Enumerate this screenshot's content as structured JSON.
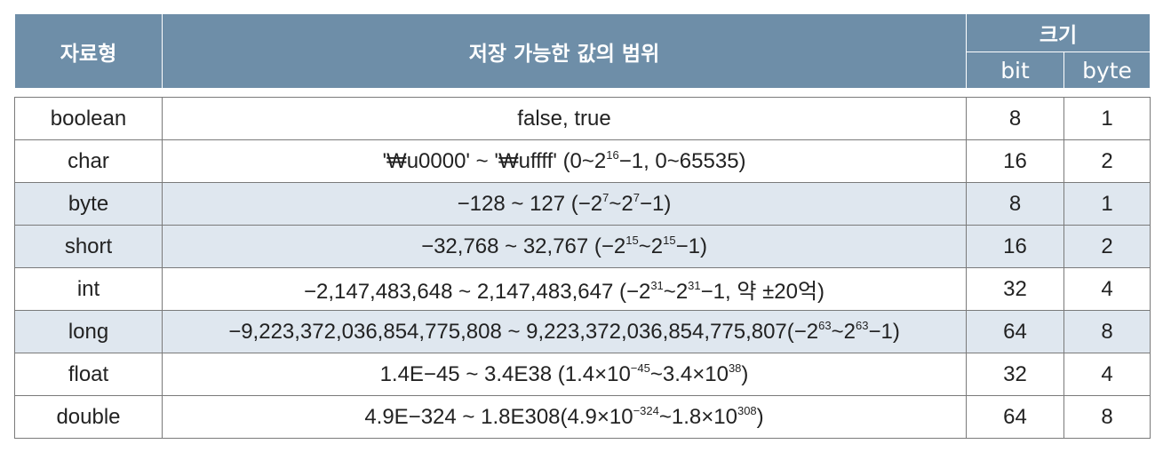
{
  "header": {
    "type": "자료형",
    "range": "저장 가능한 값의 범위",
    "size": "크기",
    "bit": "bit",
    "byte": "byte"
  },
  "rows": [
    {
      "type": "boolean",
      "range": [
        [
          "false, true",
          ""
        ]
      ],
      "bit": "8",
      "byte": "1",
      "shade": false
    },
    {
      "type": "char",
      "range": [
        [
          "'₩u0000' ~ '₩uffff' (0~2",
          ""
        ],
        [
          "",
          "16"
        ],
        [
          "−1, 0~65535)",
          ""
        ]
      ],
      "bit": "16",
      "byte": "2",
      "shade": false
    },
    {
      "type": "byte",
      "range": [
        [
          "−128 ~ 127 (−2",
          ""
        ],
        [
          "",
          "7"
        ],
        [
          "~2",
          ""
        ],
        [
          "",
          "7"
        ],
        [
          "−1)",
          ""
        ]
      ],
      "bit": "8",
      "byte": "1",
      "shade": true
    },
    {
      "type": "short",
      "range": [
        [
          "−32,768 ~ 32,767 (−2",
          ""
        ],
        [
          "",
          "15"
        ],
        [
          "~2",
          ""
        ],
        [
          "",
          "15"
        ],
        [
          "−1)",
          ""
        ]
      ],
      "bit": "16",
      "byte": "2",
      "shade": true
    },
    {
      "type": "int",
      "range": [
        [
          "−2,147,483,648 ~ 2,147,483,647 (−2",
          ""
        ],
        [
          "",
          "31"
        ],
        [
          "~2",
          ""
        ],
        [
          "",
          "31"
        ],
        [
          "−1, 약 ±20억)",
          ""
        ]
      ],
      "bit": "32",
      "byte": "4",
      "shade": false
    },
    {
      "type": "long",
      "range": [
        [
          "−9,223,372,036,854,775,808 ~ 9,223,372,036,854,775,807(−2",
          ""
        ],
        [
          "",
          "63"
        ],
        [
          "~2",
          ""
        ],
        [
          "",
          "63"
        ],
        [
          "−1)",
          ""
        ]
      ],
      "bit": "64",
      "byte": "8",
      "shade": true
    },
    {
      "type": "float",
      "range": [
        [
          "1.4E−45 ~ 3.4E38 (1.4×10",
          ""
        ],
        [
          "",
          "−45"
        ],
        [
          "~3.4×10",
          ""
        ],
        [
          "",
          "38"
        ],
        [
          ")",
          ""
        ]
      ],
      "bit": "32",
      "byte": "4",
      "shade": false
    },
    {
      "type": "double",
      "range": [
        [
          "4.9E−324 ~ 1.8E308(4.9×10",
          ""
        ],
        [
          "",
          "−324"
        ],
        [
          "~1.8×10",
          ""
        ],
        [
          "",
          "308"
        ],
        [
          ")",
          ""
        ]
      ],
      "bit": "64",
      "byte": "8",
      "shade": false
    }
  ]
}
